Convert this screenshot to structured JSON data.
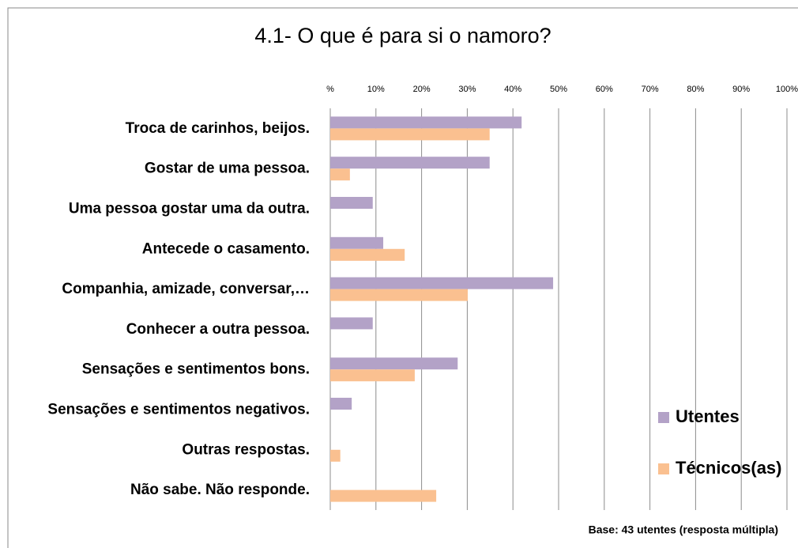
{
  "chart_data": {
    "type": "hbar",
    "title": "4.1- O que é para si o namoro?",
    "note": "Base: 43 utentes (resposta múltipla)",
    "categories": [
      "Troca de carinhos, beijos.",
      "Gostar de uma pessoa.",
      "Uma pessoa gostar uma da outra.",
      "Antecede o casamento.",
      "Companhia, amizade, conversar,…",
      "Conhecer a outra pessoa.",
      "Sensações e sentimentos bons.",
      "Sensações e sentimentos negativos.",
      "Outras respostas.",
      "Não sabe. Não responde."
    ],
    "series": [
      {
        "name": "Utentes",
        "color": "#b3a2c7",
        "values": [
          41.9,
          34.9,
          9.3,
          11.6,
          48.8,
          9.3,
          27.9,
          4.7,
          0,
          0
        ]
      },
      {
        "name": "Técnicos(as)",
        "color": "#fac090",
        "values": [
          34.9,
          4.3,
          0,
          16.3,
          30.1,
          0,
          18.5,
          0,
          2.2,
          23.2
        ]
      }
    ],
    "xlim": [
      0,
      100
    ],
    "xticks": [
      {
        "value": 0,
        "label": "%"
      },
      {
        "value": 10,
        "label": "10%"
      },
      {
        "value": 20,
        "label": "20%"
      },
      {
        "value": 30,
        "label": "30%"
      },
      {
        "value": 40,
        "label": "40%"
      },
      {
        "value": 50,
        "label": "50%"
      },
      {
        "value": 60,
        "label": "60%"
      },
      {
        "value": 70,
        "label": "70%"
      },
      {
        "value": 80,
        "label": "80%"
      },
      {
        "value": 90,
        "label": "90%"
      },
      {
        "value": 100,
        "label": "100%"
      }
    ],
    "grid": true,
    "legend": "right"
  }
}
